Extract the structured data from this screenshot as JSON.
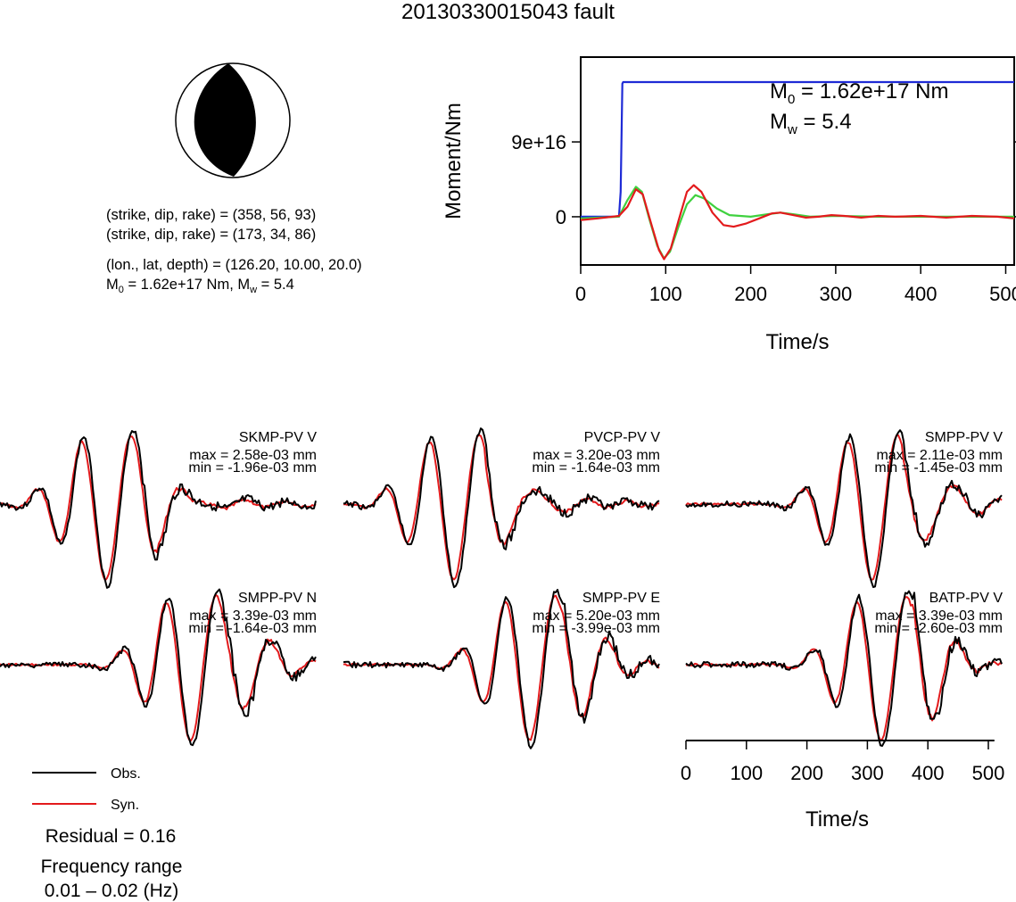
{
  "title": "20130330015043 fault",
  "colors": {
    "obs": "#000000",
    "syn": "#e31a1c",
    "moment": "#1f2bd6",
    "stf_green": "#3fd13f",
    "stf_red": "#e31a1c"
  },
  "mechanism": {
    "np1": "(strike, dip, rake) = (358, 56, 93)",
    "np2": "(strike, dip, rake) = (173, 34, 86)",
    "location": "(lon., lat, depth) = (126.20, 10.00, 20.0)",
    "m0_prefix": "M",
    "m0_sub": "0",
    "m0_text": " = 1.62e+17 Nm, M",
    "mw_sub": "w",
    "mw_text": " = 5.4"
  },
  "chart_data": [
    {
      "type": "line",
      "ylabel": "Moment/Nm",
      "xlabel": "Time/s",
      "xlim": [
        0,
        510
      ],
      "x_ticks": [
        "0",
        "100",
        "200",
        "300",
        "400",
        "500"
      ],
      "y_ticks": [
        "0",
        "9e+16"
      ],
      "annotation": {
        "m0_prefix": "M",
        "m0_sub": "0",
        "m0_text": " = 1.62e+17 Nm",
        "mw_prefix": "M",
        "mw_sub": "w",
        "mw_text": " = 5.4"
      },
      "series": [
        {
          "color": "blue",
          "points": [
            [
              0,
              0
            ],
            [
              45,
              0
            ],
            [
              47,
              3e+16
            ],
            [
              49,
              1.6e+17
            ],
            [
              50,
              1.62e+17
            ],
            [
              510,
              1.62e+17
            ]
          ]
        },
        {
          "color": "green",
          "points": [
            [
              0,
              -2000000000000000.0
            ],
            [
              45,
              0
            ],
            [
              55,
              2e+16
            ],
            [
              65,
              3.6e+16
            ],
            [
              72,
              3e+16
            ],
            [
              80,
              0.0
            ],
            [
              90,
              -3.5e+16
            ],
            [
              98,
              -5e+16
            ],
            [
              105,
              -4.2e+16
            ],
            [
              115,
              -1.2e+16
            ],
            [
              125,
              1.5e+16
            ],
            [
              135,
              2.6e+16
            ],
            [
              145,
              2.2e+16
            ],
            [
              160,
              1e+16
            ],
            [
              175,
              2000000000000000.0
            ],
            [
              200,
              0.0
            ],
            [
              220,
              3000000000000000.0
            ],
            [
              235,
              5000000000000000.0
            ],
            [
              250,
              3000000000000000.0
            ],
            [
              270,
              0.0
            ],
            [
              300,
              1000000000000000.0
            ],
            [
              350,
              0.0
            ],
            [
              400,
              0.0
            ],
            [
              510,
              0.0
            ]
          ]
        },
        {
          "color": "red",
          "points": [
            [
              0,
              -4000000000000000.0
            ],
            [
              20,
              -2000000000000000.0
            ],
            [
              45,
              1000000000000000.0
            ],
            [
              55,
              1.2e+16
            ],
            [
              65,
              3.3e+16
            ],
            [
              73,
              2.7e+16
            ],
            [
              82,
              -5000000000000000.0
            ],
            [
              92,
              -4e+16
            ],
            [
              98,
              -5.1e+16
            ],
            [
              106,
              -3.8e+16
            ],
            [
              115,
              -5000000000000000.0
            ],
            [
              125,
              3e+16
            ],
            [
              133,
              3.8e+16
            ],
            [
              142,
              3e+16
            ],
            [
              155,
              5000000000000000.0
            ],
            [
              168,
              -1e+16
            ],
            [
              180,
              -1.2e+16
            ],
            [
              195,
              -8000000000000000.0
            ],
            [
              210,
              -2000000000000000.0
            ],
            [
              225,
              4000000000000000.0
            ],
            [
              235,
              5000000000000000.0
            ],
            [
              250,
              2000000000000000.0
            ],
            [
              265,
              -1000000000000000.0
            ],
            [
              280,
              0.0
            ],
            [
              295,
              2000000000000000.0
            ],
            [
              310,
              1000000000000000.0
            ],
            [
              330,
              -1000000000000000.0
            ],
            [
              350,
              1000000000000000.0
            ],
            [
              370,
              0.0
            ],
            [
              400,
              1000000000000000.0
            ],
            [
              430,
              -1000000000000000.0
            ],
            [
              460,
              1000000000000000.0
            ],
            [
              490,
              0.0
            ],
            [
              510,
              -2000000000000000.0
            ]
          ]
        }
      ]
    }
  ],
  "traces": [
    {
      "station": "SKMP-PV V",
      "max": "max = 2.58e-03 mm",
      "min": "min = -1.96e-03 mm",
      "peak": 135,
      "obs_amp": 1.0,
      "shape": 0
    },
    {
      "station": "PVCP-PV V",
      "max": "max = 3.20e-03 mm",
      "min": "min = -1.64e-03 mm",
      "peak": 140,
      "obs_amp": 1.0,
      "shape": 1
    },
    {
      "station": "SMPP-PV V",
      "max": "max = 2.11e-03 mm",
      "min": "min = -1.45e-03 mm",
      "peak": 225,
      "obs_amp": 1.0,
      "shape": 2
    },
    {
      "station": "SMPP-PV N",
      "max": "max = 3.39e-03 mm",
      "min": "min = -1.64e-03 mm",
      "peak": 230,
      "obs_amp": 1.0,
      "shape": 3
    },
    {
      "station": "SMPP-PV E",
      "max": "max = 5.20e-03 mm",
      "min": "min = -3.99e-03 mm",
      "peak": 225,
      "obs_amp": 1.0,
      "shape": 4
    },
    {
      "station": "BATP-PV V",
      "max": "max = 3.39e-03 mm",
      "min": "min = -2.60e-03 mm",
      "peak": 235,
      "obs_amp": 1.0,
      "shape": 5
    }
  ],
  "time_axis": {
    "xlabel": "Time/s",
    "ticks": [
      "0",
      "100",
      "200",
      "300",
      "400",
      "500"
    ]
  },
  "legend": {
    "obs_label": "Obs.",
    "syn_label": "Syn."
  },
  "residual": "Residual = 0.16",
  "frequency_title": "Frequency range",
  "frequency_value": "0.01 – 0.02 (Hz)"
}
